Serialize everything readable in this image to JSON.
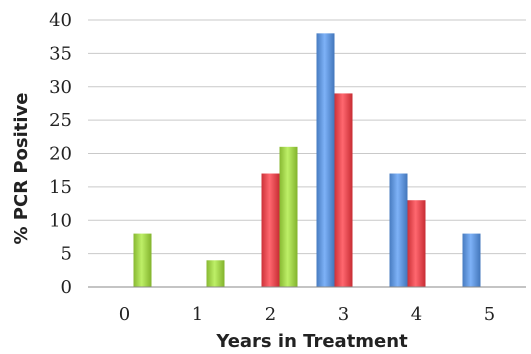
{
  "chart_data": {
    "type": "bar",
    "categories": [
      "0",
      "1",
      "2",
      "3",
      "4",
      "5"
    ],
    "series": [
      {
        "color": "#5b8fd4",
        "values": [
          0,
          0,
          0,
          38,
          17,
          8
        ]
      },
      {
        "color": "#e0454c",
        "values": [
          0,
          0,
          17,
          29,
          13,
          0
        ]
      },
      {
        "color": "#9bcc45",
        "values": [
          8,
          4,
          21,
          0,
          0,
          0
        ]
      }
    ],
    "ylabel": "% PCR Positive",
    "xlabel": "Years in Treatment",
    "ylim": [
      0,
      40
    ],
    "yticks": [
      "0",
      "5",
      "10",
      "15",
      "20",
      "25",
      "30",
      "35",
      "40"
    ],
    "grid": true
  }
}
